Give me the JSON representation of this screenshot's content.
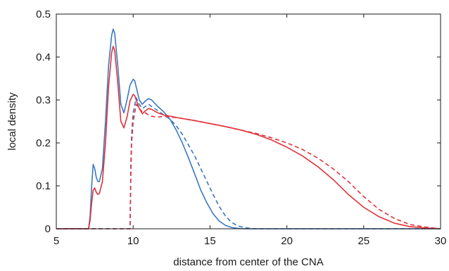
{
  "chart_data": {
    "type": "line",
    "title": "",
    "xlabel": "distance from center of the CNA",
    "ylabel": "local density",
    "xlim": [
      5,
      30
    ],
    "ylim": [
      0,
      0.5
    ],
    "xticks": [
      5,
      10,
      15,
      20,
      25,
      30
    ],
    "yticks": [
      0,
      0.1,
      0.2,
      0.3,
      0.4,
      0.5
    ],
    "xtick_labels": [
      "5",
      "10",
      "15",
      "20",
      "25",
      "30"
    ],
    "ytick_labels": [
      "0",
      "0.1",
      "0.2",
      "0.3",
      "0.4",
      "0.5"
    ],
    "grid": false,
    "legend": "none",
    "series": [
      {
        "color": "#3a78c0",
        "style": "solid",
        "x": [
          5.0,
          7.1,
          7.2,
          7.3,
          7.4,
          7.5,
          7.6,
          7.7,
          7.8,
          8.0,
          8.2,
          8.4,
          8.6,
          8.7,
          8.8,
          9.0,
          9.2,
          9.4,
          9.6,
          9.8,
          10.0,
          10.1,
          10.2,
          10.4,
          10.6,
          10.8,
          11.0,
          11.2,
          11.6,
          12.0,
          12.4,
          12.8,
          13.2,
          13.6,
          14.0,
          14.4,
          14.8,
          15.2,
          15.6,
          16.0,
          16.4,
          16.8,
          17.2,
          17.6,
          18.0,
          30.0
        ],
        "y": [
          0.0,
          0.0,
          0.03,
          0.1,
          0.15,
          0.14,
          0.12,
          0.11,
          0.11,
          0.14,
          0.25,
          0.38,
          0.45,
          0.465,
          0.455,
          0.38,
          0.29,
          0.27,
          0.3,
          0.335,
          0.348,
          0.345,
          0.33,
          0.3,
          0.29,
          0.298,
          0.303,
          0.3,
          0.285,
          0.272,
          0.255,
          0.23,
          0.2,
          0.165,
          0.128,
          0.09,
          0.06,
          0.035,
          0.018,
          0.008,
          0.003,
          0.001,
          0.0,
          0.0,
          0.0,
          0.0
        ]
      },
      {
        "color": "#3a78c0",
        "style": "dashed",
        "x": [
          5.0,
          9.8,
          9.85,
          9.9,
          10.0,
          10.2,
          10.4,
          10.6,
          10.8,
          11.0,
          11.2,
          11.6,
          12.0,
          12.4,
          12.8,
          13.2,
          13.6,
          14.0,
          14.4,
          14.8,
          15.2,
          15.6,
          16.0,
          16.4,
          16.8,
          17.2,
          17.6,
          18.0,
          18.4,
          18.8,
          30.0
        ],
        "y": [
          0.0,
          0.0,
          0.15,
          0.22,
          0.27,
          0.305,
          0.29,
          0.28,
          0.285,
          0.29,
          0.285,
          0.275,
          0.265,
          0.255,
          0.24,
          0.22,
          0.195,
          0.17,
          0.14,
          0.11,
          0.08,
          0.052,
          0.03,
          0.015,
          0.007,
          0.003,
          0.001,
          0.0,
          0.0,
          0.0,
          0.0
        ]
      },
      {
        "color": "#e0323a",
        "style": "solid",
        "x": [
          5.0,
          7.1,
          7.2,
          7.3,
          7.4,
          7.5,
          7.6,
          7.7,
          7.8,
          8.0,
          8.2,
          8.4,
          8.6,
          8.7,
          8.8,
          9.0,
          9.2,
          9.4,
          9.6,
          9.8,
          10.0,
          10.1,
          10.2,
          10.4,
          10.6,
          10.8,
          11.0,
          11.2,
          11.6,
          12.0,
          13.0,
          14.0,
          15.0,
          16.0,
          17.0,
          18.0,
          19.0,
          20.0,
          21.0,
          22.0,
          23.0,
          24.0,
          25.0,
          26.0,
          27.0,
          28.0,
          29.0,
          29.5,
          30.0
        ],
        "y": [
          0.0,
          0.0,
          0.02,
          0.06,
          0.09,
          0.095,
          0.085,
          0.08,
          0.082,
          0.11,
          0.2,
          0.33,
          0.41,
          0.425,
          0.415,
          0.34,
          0.25,
          0.235,
          0.26,
          0.298,
          0.313,
          0.31,
          0.3,
          0.28,
          0.268,
          0.275,
          0.28,
          0.278,
          0.27,
          0.265,
          0.258,
          0.252,
          0.245,
          0.238,
          0.23,
          0.22,
          0.207,
          0.19,
          0.17,
          0.145,
          0.115,
          0.08,
          0.05,
          0.028,
          0.013,
          0.005,
          0.002,
          0.001,
          0.0
        ]
      },
      {
        "color": "#e0323a",
        "style": "dashed",
        "x": [
          5.0,
          9.8,
          9.85,
          9.9,
          10.0,
          10.2,
          10.4,
          10.6,
          10.8,
          11.0,
          11.2,
          11.6,
          12.0,
          13.0,
          14.0,
          15.0,
          16.0,
          17.0,
          18.0,
          19.0,
          20.0,
          21.0,
          22.0,
          23.0,
          24.0,
          25.0,
          26.0,
          27.0,
          28.0,
          29.0,
          29.5,
          30.0
        ],
        "y": [
          0.0,
          0.0,
          0.12,
          0.2,
          0.25,
          0.29,
          0.28,
          0.272,
          0.27,
          0.265,
          0.262,
          0.26,
          0.262,
          0.258,
          0.252,
          0.245,
          0.238,
          0.23,
          0.222,
          0.212,
          0.2,
          0.185,
          0.165,
          0.14,
          0.11,
          0.075,
          0.045,
          0.024,
          0.01,
          0.004,
          0.002,
          0.0
        ]
      }
    ]
  }
}
